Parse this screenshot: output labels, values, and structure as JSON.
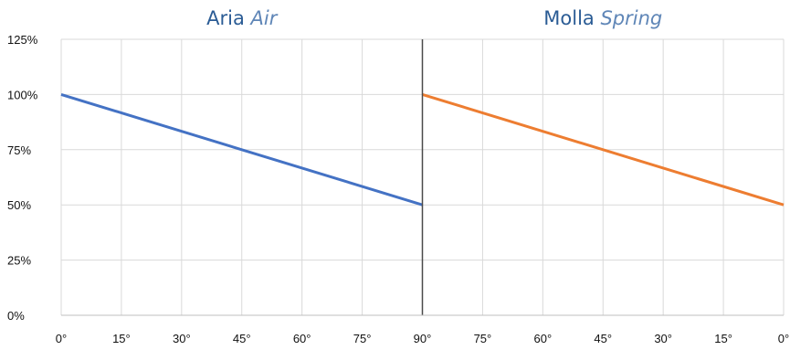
{
  "chart_data": {
    "type": "line",
    "panels": [
      {
        "title_main": "Aria",
        "title_sub": "Air",
        "x_tick_labels": [
          "0°",
          "15°",
          "30°",
          "45°",
          "60°",
          "75°",
          "90°"
        ],
        "x": [
          0,
          90
        ],
        "y": [
          100,
          50
        ],
        "color": "#4472c4"
      },
      {
        "title_main": "Molla",
        "title_sub": "Spring",
        "x_tick_labels": [
          "90°",
          "75°",
          "60°",
          "45°",
          "30°",
          "15°",
          "0°"
        ],
        "x": [
          90,
          0
        ],
        "y": [
          100,
          50
        ],
        "color": "#ed7d31"
      }
    ],
    "y_ticks": [
      0,
      25,
      50,
      75,
      100,
      125
    ],
    "y_tick_labels": [
      "0%",
      "25%",
      "50%",
      "75%",
      "100%",
      "125%"
    ],
    "ylim": [
      0,
      125
    ],
    "grid": true
  }
}
